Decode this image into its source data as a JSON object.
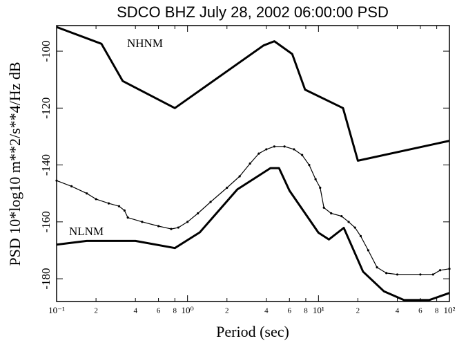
{
  "chart_data": {
    "type": "line",
    "title": "SDCO BHZ July 28, 2002 06:00:00 PSD",
    "x_label": "Period (sec)",
    "y_label": "PSD 10*log10 m**2/s**4/Hz dB",
    "log_x": true,
    "xlim": [
      0.1,
      100
    ],
    "ylim": [
      -188,
      -91
    ],
    "xticks": [
      {
        "value": 0.1,
        "label": "10⁻¹"
      },
      {
        "value": 0.2,
        "label": "2"
      },
      {
        "value": 0.4,
        "label": "4"
      },
      {
        "value": 0.6,
        "label": "6"
      },
      {
        "value": 0.8,
        "label": "8"
      },
      {
        "value": 1,
        "label": "10⁰"
      },
      {
        "value": 2,
        "label": "2"
      },
      {
        "value": 4,
        "label": "4"
      },
      {
        "value": 6,
        "label": "6"
      },
      {
        "value": 8,
        "label": "8"
      },
      {
        "value": 10,
        "label": "10¹"
      },
      {
        "value": 20,
        "label": "2"
      },
      {
        "value": 40,
        "label": "4"
      },
      {
        "value": 60,
        "label": "6"
      },
      {
        "value": 80,
        "label": "8"
      },
      {
        "value": 100,
        "label": "10²"
      }
    ],
    "yticks": [
      -180,
      -160,
      -140,
      -120,
      -100
    ],
    "series": [
      {
        "name": "NHNM",
        "color": "#000000",
        "line_width": 3,
        "x": [
          0.1,
          0.22,
          0.32,
          0.8,
          3.8,
          4.6,
          6.3,
          7.9,
          15.4,
          20,
          100
        ],
        "values": [
          -91.5,
          -97.4,
          -110.5,
          -120,
          -98,
          -96.5,
          -101,
          -113.5,
          -120,
          -138.5,
          -131.5
        ]
      },
      {
        "name": "NLNM",
        "color": "#000000",
        "line_width": 3,
        "x": [
          0.1,
          0.17,
          0.4,
          0.8,
          1.24,
          2.4,
          4.3,
          5,
          6,
          10,
          12,
          15.6,
          21.9,
          31.6,
          45,
          70,
          100
        ],
        "values": [
          -168,
          -166.7,
          -166.7,
          -169.2,
          -163.7,
          -148.6,
          -141.1,
          -141.1,
          -149,
          -163.8,
          -166.2,
          -162.1,
          -177.5,
          -184.4,
          -187.5,
          -187.5,
          -185
        ]
      },
      {
        "color": "#000000",
        "line_width": 1.2,
        "markers": true,
        "x": [
          0.1,
          0.13,
          0.17,
          0.2,
          0.25,
          0.3,
          0.33,
          0.35,
          0.45,
          0.6,
          0.75,
          0.85,
          1,
          1.2,
          1.5,
          2,
          2.5,
          3,
          3.5,
          4,
          4.6,
          5.5,
          6.5,
          7.5,
          8.5,
          9.5,
          10.3,
          11,
          12.5,
          15,
          17,
          19,
          21,
          24,
          28,
          33,
          40,
          60,
          75,
          85,
          100
        ],
        "values": [
          -145.5,
          -147.5,
          -150,
          -152,
          -153.5,
          -154.5,
          -156,
          -158.5,
          -160,
          -161.5,
          -162.5,
          -162,
          -160,
          -157,
          -153,
          -148,
          -144,
          -139.5,
          -136,
          -134.5,
          -133.5,
          -133.5,
          -134.5,
          -136.5,
          -140,
          -145,
          -148,
          -155,
          -157,
          -158,
          -160,
          -162,
          -165,
          -170,
          -176,
          -178,
          -178.5,
          -178.5,
          -178.5,
          -177,
          -176.5
        ]
      }
    ]
  }
}
